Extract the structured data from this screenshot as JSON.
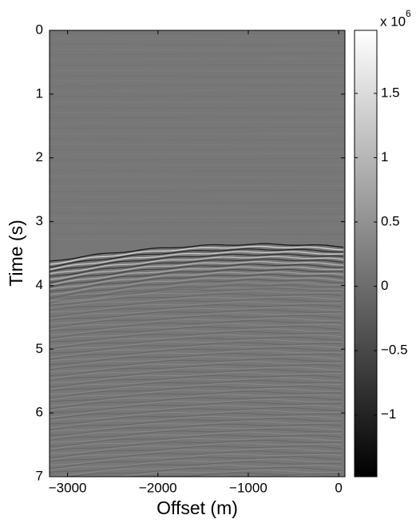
{
  "chart_data": {
    "type": "heatmap",
    "xlabel": "Offset (m)",
    "ylabel": "Time (s)",
    "xlim": [
      -3200,
      70
    ],
    "xticks": [
      {
        "value": -3000,
        "label": "−3000"
      },
      {
        "value": -2000,
        "label": "−2000"
      },
      {
        "value": -1000,
        "label": "−1000"
      },
      0
    ],
    "ylim": [
      0,
      7
    ],
    "y_inverted": true,
    "yticks": [
      0,
      1,
      2,
      3,
      4,
      5,
      6,
      7
    ],
    "colormap": "gray",
    "colorbar": {
      "lim": [
        -1.48,
        1.99
      ],
      "ticks": [
        {
          "value": -1,
          "label": "−1"
        },
        {
          "value": -0.5,
          "label": "−0.5"
        },
        0,
        0.5,
        1,
        1.5
      ],
      "multiplier_base": "x 10",
      "multiplier_exponent": "6"
    }
  }
}
